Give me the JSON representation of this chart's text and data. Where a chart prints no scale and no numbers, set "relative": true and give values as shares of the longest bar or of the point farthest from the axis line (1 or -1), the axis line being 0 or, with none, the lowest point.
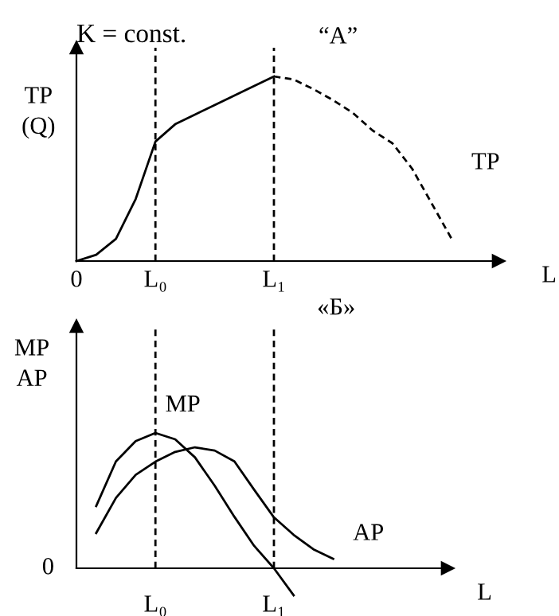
{
  "chart_data": [
    {
      "type": "line",
      "title": "“A”",
      "ylabel": "TP\n(Q)",
      "xlabel": "L",
      "relative": true,
      "annotations": [
        "K = const."
      ],
      "categories": [
        "0",
        null,
        null,
        null,
        "L₀",
        null,
        null,
        null,
        null,
        null,
        "L₁",
        null,
        null,
        null,
        null,
        null,
        null,
        null,
        null,
        null,
        null
      ],
      "ref_lines": [
        {
          "axis": "x",
          "value": "L₀",
          "line_style": "dashed",
          "color": "#000000"
        },
        {
          "axis": "x",
          "value": "L₁",
          "line_style": "dashed",
          "color": "#000000"
        }
      ],
      "series": [
        {
          "color": "#000000",
          "line_style": "solid",
          "values": [
            0,
            0.034,
            0.12,
            0.336,
            0.647,
            0.741,
            0.793,
            0.845,
            0.897,
            0.948,
            1,
            null,
            null,
            null,
            null,
            null,
            null,
            null,
            null,
            null,
            null
          ]
        },
        {
          "name": "TP",
          "color": "#000000",
          "line_style": "dashed",
          "values": [
            null,
            null,
            null,
            null,
            null,
            null,
            null,
            null,
            null,
            null,
            1,
            0.983,
            0.931,
            0.871,
            0.802,
            0.707,
            0.638,
            0.5,
            0.31,
            0.12,
            null
          ]
        }
      ]
    },
    {
      "type": "line",
      "title": "«Б»",
      "ylabel": "MP\nAP",
      "xlabel": "L",
      "relative": true,
      "annotations": [
        "0"
      ],
      "categories": [
        null,
        null,
        null,
        null,
        "L₀",
        null,
        null,
        null,
        null,
        null,
        "L₁",
        null,
        null,
        null
      ],
      "ref_lines": [
        {
          "axis": "x",
          "value": "L₀",
          "line_style": "dashed",
          "color": "#000000"
        },
        {
          "axis": "x",
          "value": "L₁",
          "line_style": "dashed",
          "color": "#000000"
        }
      ],
      "series": [
        {
          "name": "MP",
          "color": "#000000",
          "line_style": "solid",
          "values": [
            null,
            0.46,
            0.79,
            0.94,
            1,
            0.953,
            0.82,
            0.61,
            0.38,
            0.165,
            0,
            -0.2,
            null,
            null
          ]
        },
        {
          "name": "AP",
          "color": "#000000",
          "line_style": "solid",
          "values": [
            null,
            0.26,
            0.52,
            0.69,
            0.788,
            0.86,
            0.894,
            0.87,
            0.79,
            0.58,
            0.376,
            0.247,
            0.14,
            0.07
          ]
        }
      ]
    }
  ]
}
